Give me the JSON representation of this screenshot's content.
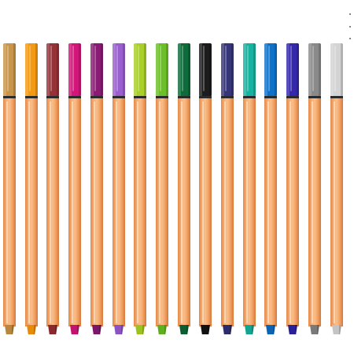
{
  "scene": {
    "description_label": "",
    "pens": [
      {
        "color_name": "gold-ochre",
        "cap_color": "#c8954a",
        "tip_color": "#b8863c"
      },
      {
        "color_name": "orange",
        "cap_color": "#f39a12",
        "tip_color": "#e88a0a"
      },
      {
        "color_name": "brick-red",
        "cap_color": "#963236",
        "tip_color": "#8a2a2e"
      },
      {
        "color_name": "magenta",
        "cap_color": "#d4157a",
        "tip_color": "#c41270"
      },
      {
        "color_name": "purple",
        "cap_color": "#8a1a74",
        "tip_color": "#7c1668"
      },
      {
        "color_name": "lavender",
        "cap_color": "#9a5ed0",
        "tip_color": "#8c52c4"
      },
      {
        "color_name": "yellow-green",
        "cap_color": "#a9cf2a",
        "tip_color": "#9cc220"
      },
      {
        "color_name": "green",
        "cap_color": "#6dbf2a",
        "tip_color": "#5fb020"
      },
      {
        "color_name": "dark-green",
        "cap_color": "#0e6b3a",
        "tip_color": "#0a5e32"
      },
      {
        "color_name": "black",
        "cap_color": "#1c1c1c",
        "tip_color": "#111111"
      },
      {
        "color_name": "navy",
        "cap_color": "#36357a",
        "tip_color": "#2c2b6c"
      },
      {
        "color_name": "teal",
        "cap_color": "#16b3a0",
        "tip_color": "#10a492"
      },
      {
        "color_name": "blue",
        "cap_color": "#0f72c9",
        "tip_color": "#0a64b6"
      },
      {
        "color_name": "indigo",
        "cap_color": "#3428ab",
        "tip_color": "#2a209a"
      },
      {
        "color_name": "gray",
        "cap_color": "#8a8a8a",
        "tip_color": "#7a7a7a"
      },
      {
        "color_name": "light-gray",
        "cap_color": "#d4d4d4",
        "tip_color": "#c4c4c4"
      }
    ],
    "barrel_color": "#f5a76c"
  }
}
